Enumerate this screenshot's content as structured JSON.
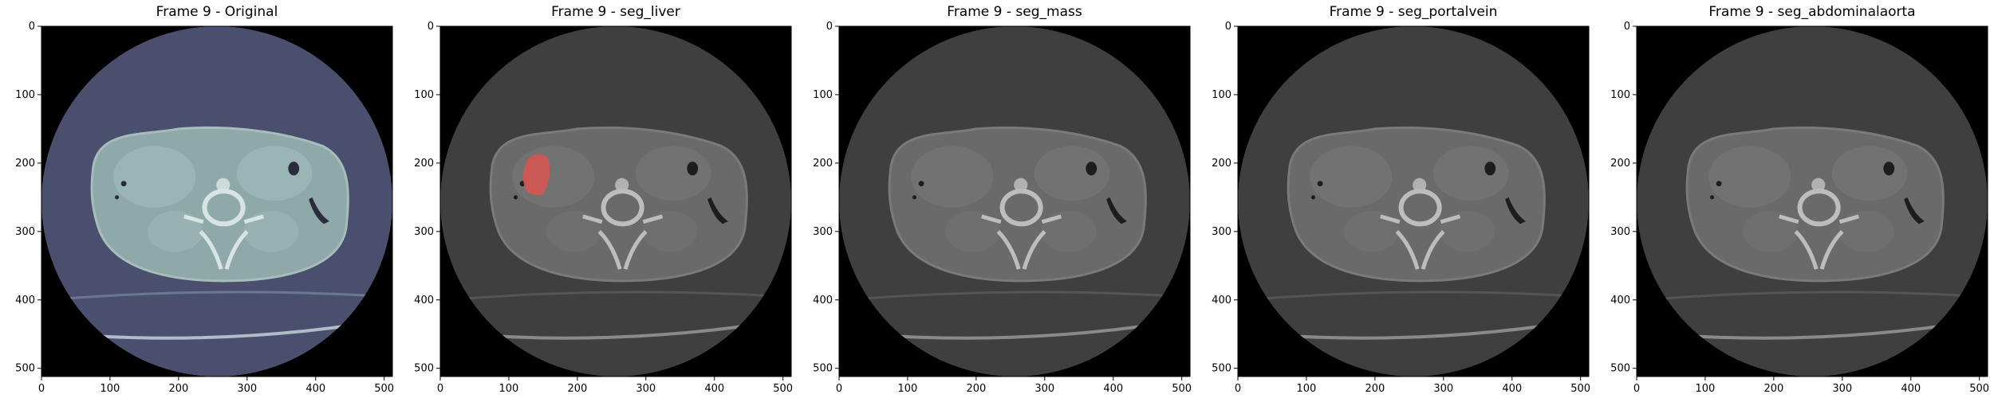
{
  "figure": {
    "panels": [
      {
        "title": "Frame 9 - Original",
        "mode": "original",
        "overlay": null
      },
      {
        "title": "Frame 9 - seg_liver",
        "mode": "gray",
        "overlay": {
          "label": "seg_liver",
          "color": "#d9534f"
        }
      },
      {
        "title": "Frame 9 - seg_mass",
        "mode": "gray",
        "overlay": null
      },
      {
        "title": "Frame 9 - seg_portalvein",
        "mode": "gray",
        "overlay": null
      },
      {
        "title": "Frame 9 - seg_abdominalaorta",
        "mode": "gray",
        "overlay": null
      }
    ],
    "x_ticks": [
      "0",
      "100",
      "200",
      "300",
      "400",
      "500"
    ],
    "y_ticks": [
      "0",
      "100",
      "200",
      "300",
      "400",
      "500"
    ],
    "image_extent": [
      0,
      511
    ],
    "colors": {
      "background_fov": "#000000",
      "original_tissue_tint": "#4a4e6c",
      "gray_tissue": "#4a4a4a"
    }
  }
}
